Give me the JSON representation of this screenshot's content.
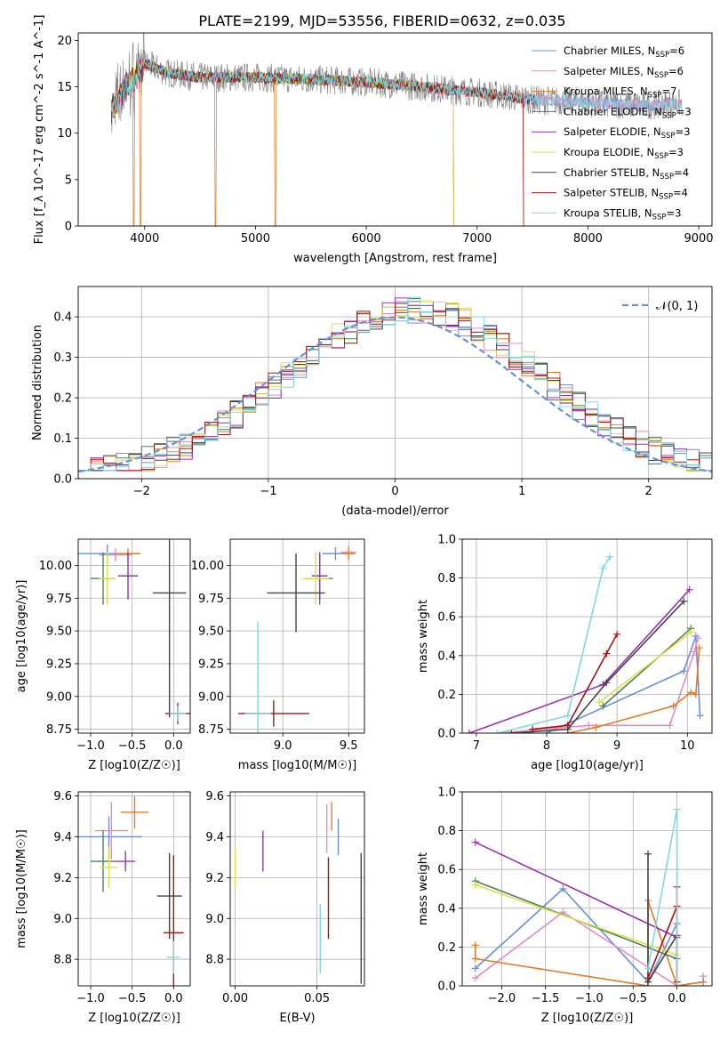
{
  "figure_title": "PLATE=2199, MJD=53556, FIBERID=0632, z=0.035",
  "chart_data": [
    {
      "type": "line",
      "title": "PLATE=2199, MJD=53556, FIBERID=0632, z=0.035",
      "xlabel": "wavelength [Angstrom, rest frame]",
      "ylabel": "Flux [f_λ 10^-17 erg cm^-2 s^-1 A^-1]",
      "xlim": [
        3400,
        9120
      ],
      "ylim": [
        0,
        20.8
      ],
      "xticks": [
        4000,
        5000,
        6000,
        7000,
        8000,
        9000
      ],
      "yticks": [
        0,
        5,
        10,
        15,
        20
      ],
      "grid": false,
      "legend_position": "upper right",
      "legend": [
        {
          "text": "Chabrier MILES, N",
          "sub": "SSP",
          "tail": "=6",
          "color": "#6A8FD8"
        },
        {
          "text": "Salpeter MILES, N",
          "sub": "SSP",
          "tail": "=6",
          "color": "#E68BC0"
        },
        {
          "text": "Kroupa MILES, N",
          "sub": "SSP",
          "tail": "=7",
          "color": "#E07B27"
        },
        {
          "text": "Chabrier ELODIE, N",
          "sub": "SSP",
          "tail": "=3",
          "color": "#4F7F5A"
        },
        {
          "text": "Salpeter ELODIE, N",
          "sub": "SSP",
          "tail": "=3",
          "color": "#9A2FB0"
        },
        {
          "text": "Kroupa ELODIE, N",
          "sub": "SSP",
          "tail": "=3",
          "color": "#D9E14A"
        },
        {
          "text": "Chabrier STELIB, N",
          "sub": "SSP",
          "tail": "=4",
          "color": "#444444"
        },
        {
          "text": "Salpeter STELIB, N",
          "sub": "SSP",
          "tail": "=4",
          "color": "#A31515"
        },
        {
          "text": "Kroupa STELIB, N",
          "sub": "SSP",
          "tail": "=3",
          "color": "#7FD9DD"
        }
      ],
      "spectrum": {
        "data_color": "#808080",
        "wave_range": [
          3700,
          8850
        ],
        "continuum": [
          [
            3700,
            12.5
          ],
          [
            3800,
            14.5
          ],
          [
            3900,
            16.0
          ],
          [
            4000,
            17.5
          ],
          [
            4200,
            16.5
          ],
          [
            4500,
            16.0
          ],
          [
            5000,
            16.0
          ],
          [
            5500,
            15.8
          ],
          [
            6000,
            15.5
          ],
          [
            6500,
            15.0
          ],
          [
            7000,
            14.4
          ],
          [
            7500,
            13.6
          ],
          [
            8000,
            13.3
          ],
          [
            8500,
            13.0
          ],
          [
            8850,
            13.2
          ]
        ],
        "model_ranges": [
          [
            3700,
            8850
          ],
          [
            3700,
            8850
          ],
          [
            3700,
            7420
          ],
          [
            3700,
            6790
          ],
          [
            3700,
            6790
          ],
          [
            3700,
            6790
          ],
          [
            3700,
            7520
          ],
          [
            3700,
            7420
          ],
          [
            3700,
            8850
          ]
        ],
        "dropouts": [
          [
            3900,
            2
          ],
          [
            3960,
            2
          ],
          [
            4640,
            2
          ],
          [
            5180,
            2
          ],
          [
            6790,
            3
          ],
          [
            6790,
            4
          ],
          [
            6790,
            5
          ],
          [
            7420,
            2
          ],
          [
            7420,
            7
          ]
        ]
      }
    },
    {
      "type": "step",
      "xlabel": "(data-model)/error",
      "ylabel": "Normed distribution",
      "xlim": [
        -2.5,
        2.5
      ],
      "ylim": [
        0,
        0.475
      ],
      "xticks": [
        -2,
        -1,
        0,
        1,
        2
      ],
      "yticks": [
        0.0,
        0.1,
        0.2,
        0.3,
        0.4
      ],
      "grid": true,
      "legend": [
        {
          "text": "𝒩(0, 1)",
          "color": "#6A8FD8",
          "style": "dashed"
        }
      ],
      "bin_edges_start": -2.5,
      "bin_width": 0.1,
      "n_bins": 50,
      "series": [
        {
          "color": "#6A8FD8",
          "seed": 11
        },
        {
          "color": "#E68BC0",
          "seed": 23
        },
        {
          "color": "#E07B27",
          "seed": 37
        },
        {
          "color": "#4F7F5A",
          "seed": 41
        },
        {
          "color": "#9A2FB0",
          "seed": 53
        },
        {
          "color": "#D9E14A",
          "seed": 67
        },
        {
          "color": "#444444",
          "seed": 71
        },
        {
          "color": "#A31515",
          "seed": 83
        },
        {
          "color": "#7FD9DD",
          "seed": 97
        }
      ],
      "gaussian": {
        "mu": 0,
        "sigma": 1
      }
    },
    {
      "type": "errorbar",
      "xlabel": "Z [log10(Z/Z☉)]",
      "ylabel": "age [log10(age/yr)]",
      "xlim": [
        -1.15,
        0.2
      ],
      "ylim": [
        8.72,
        10.2
      ],
      "xticks": [
        -1.0,
        -0.5,
        0.0
      ],
      "yticks": [
        8.75,
        9.0,
        9.25,
        9.5,
        9.75,
        10.0
      ],
      "points": [
        {
          "x": -0.8,
          "y": 10.09,
          "xerr": 0.4,
          "yerr": 0.07,
          "color": "#6A8FD8"
        },
        {
          "x": -0.7,
          "y": 10.08,
          "xerr": 0.2,
          "yerr": 0.05,
          "color": "#E68BC0"
        },
        {
          "x": -0.55,
          "y": 10.09,
          "xerr": 0.15,
          "yerr": 0.04,
          "color": "#E07B27"
        },
        {
          "x": -0.85,
          "y": 9.9,
          "xerr": 0.15,
          "yerr": 0.2,
          "color": "#4F7F5A"
        },
        {
          "x": -0.55,
          "y": 9.92,
          "xerr": 0.12,
          "yerr": 0.18,
          "color": "#9A2FB0"
        },
        {
          "x": -0.8,
          "y": 9.9,
          "xerr": 0.1,
          "yerr": 0.2,
          "color": "#D9E14A"
        },
        {
          "x": -0.05,
          "y": 9.79,
          "xerr": 0.2,
          "yerr": 0.95,
          "color": "#444444"
        },
        {
          "x": 0.05,
          "y": 8.87,
          "xerr": 0.15,
          "yerr": 0.08,
          "color": "#A31515"
        },
        {
          "x": 0.05,
          "y": 8.87,
          "xerr": 0.1,
          "yerr": 0.06,
          "color": "#7FD9DD"
        }
      ]
    },
    {
      "type": "errorbar",
      "xlabel": "mass [log10(M/M☉)]",
      "ylabel": "",
      "xlim": [
        8.6,
        9.62
      ],
      "ylim": [
        8.72,
        10.2
      ],
      "xticks": [
        9.0,
        9.5
      ],
      "yticks": [
        8.75,
        9.0,
        9.25,
        9.5,
        9.75,
        10.0
      ],
      "points": [
        {
          "x": 9.4,
          "y": 10.09,
          "xerr": 0.1,
          "yerr": 0.05,
          "color": "#6A8FD8"
        },
        {
          "x": 9.5,
          "y": 10.1,
          "xerr": 0.06,
          "yerr": 0.05,
          "color": "#E68BC0"
        },
        {
          "x": 9.5,
          "y": 10.09,
          "xerr": 0.05,
          "yerr": 0.05,
          "color": "#E07B27"
        },
        {
          "x": 9.28,
          "y": 9.9,
          "xerr": 0.1,
          "yerr": 0.2,
          "color": "#4F7F5A"
        },
        {
          "x": 9.28,
          "y": 9.92,
          "xerr": 0.06,
          "yerr": 0.18,
          "color": "#9A2FB0"
        },
        {
          "x": 9.25,
          "y": 9.9,
          "xerr": 0.1,
          "yerr": 0.2,
          "color": "#D9E14A"
        },
        {
          "x": 9.1,
          "y": 9.79,
          "xerr": 0.22,
          "yerr": 0.3,
          "color": "#444444"
        },
        {
          "x": 8.93,
          "y": 8.87,
          "xerr": 0.27,
          "yerr": 0.1,
          "color": "#A31515"
        },
        {
          "x": 8.81,
          "y": 8.87,
          "xerr": 0.1,
          "yerr": 0.7,
          "color": "#7FD9DD"
        }
      ]
    },
    {
      "type": "line",
      "xlabel": "age [log10(age/yr)]",
      "ylabel": "mass weight",
      "xlim": [
        6.8,
        10.35
      ],
      "ylim": [
        0,
        1.0
      ],
      "xticks": [
        7,
        8,
        9,
        10
      ],
      "yticks": [
        0.0,
        0.2,
        0.4,
        0.6,
        0.8,
        1.0
      ],
      "series": [
        {
          "color": "#6A8FD8",
          "x": [
            8.0,
            9.95,
            10.12,
            10.18
          ],
          "y": [
            0.0,
            0.32,
            0.5,
            0.09
          ]
        },
        {
          "color": "#E68BC0",
          "x": [
            7.3,
            8.6,
            9.75,
            10.1,
            10.15
          ],
          "y": [
            0.0,
            0.04,
            0.04,
            0.42,
            0.49
          ]
        },
        {
          "color": "#E07B27",
          "x": [
            8.3,
            8.7,
            9.8,
            10.05,
            10.12,
            10.17
          ],
          "y": [
            0.0,
            0.03,
            0.14,
            0.21,
            0.2,
            0.44
          ]
        },
        {
          "color": "#4F7F5A",
          "x": [
            8.8,
            10.05
          ],
          "y": [
            0.14,
            0.54
          ]
        },
        {
          "color": "#9A2FB0",
          "x": [
            6.9,
            8.8,
            10.03
          ],
          "y": [
            0.0,
            0.25,
            0.74
          ]
        },
        {
          "color": "#D9E14A",
          "x": [
            8.75,
            10.05
          ],
          "y": [
            0.16,
            0.52
          ]
        },
        {
          "color": "#444444",
          "x": [
            7.5,
            8.3,
            8.85,
            9.95
          ],
          "y": [
            0.0,
            0.02,
            0.26,
            0.68
          ]
        },
        {
          "color": "#A31515",
          "x": [
            7.8,
            8.3,
            8.85,
            9.0
          ],
          "y": [
            0.02,
            0.04,
            0.41,
            0.51
          ]
        },
        {
          "color": "#7FD9DD",
          "x": [
            7.3,
            8.3,
            8.8,
            8.9
          ],
          "y": [
            0.0,
            0.09,
            0.85,
            0.91
          ]
        }
      ]
    },
    {
      "type": "errorbar",
      "xlabel": "Z [log10(Z/Z☉)]",
      "ylabel": "mass [log10(M/M☉)]",
      "xlim": [
        -1.15,
        0.2
      ],
      "ylim": [
        8.67,
        9.62
      ],
      "xticks": [
        -1.0,
        -0.5,
        0.0
      ],
      "yticks": [
        8.8,
        9.0,
        9.2,
        9.4,
        9.6
      ],
      "points": [
        {
          "x": -0.78,
          "y": 9.4,
          "xerr": 0.4,
          "yerr": 0.1,
          "color": "#6A8FD8"
        },
        {
          "x": -0.75,
          "y": 9.43,
          "xerr": 0.2,
          "yerr": 0.14,
          "color": "#E68BC0"
        },
        {
          "x": -0.47,
          "y": 9.52,
          "xerr": 0.17,
          "yerr": 0.08,
          "color": "#E07B27"
        },
        {
          "x": -0.85,
          "y": 9.28,
          "xerr": 0.15,
          "yerr": 0.15,
          "color": "#4F7F5A"
        },
        {
          "x": -0.58,
          "y": 9.28,
          "xerr": 0.12,
          "yerr": 0.05,
          "color": "#9A2FB0"
        },
        {
          "x": -0.78,
          "y": 9.25,
          "xerr": 0.1,
          "yerr": 0.1,
          "color": "#D9E14A"
        },
        {
          "x": -0.05,
          "y": 9.11,
          "xerr": 0.15,
          "yerr": 0.21,
          "color": "#444444"
        },
        {
          "x": 0.0,
          "y": 8.93,
          "xerr": 0.12,
          "yerr": 0.38,
          "color": "#A31515"
        },
        {
          "x": 0.0,
          "y": 8.81,
          "xerr": 0.08,
          "yerr": 0.08,
          "color": "#7FD9DD"
        }
      ]
    },
    {
      "type": "errorbar",
      "xlabel": "E(B-V)",
      "ylabel": "",
      "xlim": [
        -0.003,
        0.079
      ],
      "ylim": [
        8.67,
        9.62
      ],
      "xticks": [
        0.0,
        0.05
      ],
      "yticks": [
        8.8,
        9.0,
        9.2,
        9.4,
        9.6
      ],
      "points": [
        {
          "x": 0.063,
          "y": 9.4,
          "xerr": 0,
          "yerr": 0.09,
          "color": "#6A8FD8"
        },
        {
          "x": 0.056,
          "y": 9.44,
          "xerr": 0,
          "yerr": 0.12,
          "color": "#E68BC0"
        },
        {
          "x": 0.059,
          "y": 9.5,
          "xerr": 0,
          "yerr": 0.07,
          "color": "#E07B27"
        },
        {
          "x": 0.0,
          "y": 9.25,
          "xerr": 0,
          "yerr": 0.1,
          "color": "#D9E14A"
        },
        {
          "x": 0.017,
          "y": 9.33,
          "xerr": 0,
          "yerr": 0.1,
          "color": "#9A2FB0"
        },
        {
          "x": 0.077,
          "y": 9.0,
          "xerr": 0,
          "yerr": 0.32,
          "color": "#444444"
        },
        {
          "x": 0.057,
          "y": 9.1,
          "xerr": 0,
          "yerr": 0.2,
          "color": "#A31515"
        },
        {
          "x": 0.052,
          "y": 8.9,
          "xerr": 0,
          "yerr": 0.17,
          "color": "#7FD9DD"
        }
      ]
    },
    {
      "type": "line",
      "xlabel": "Z [log10(Z/Z☉)]",
      "ylabel": "mass weight",
      "xlim": [
        -2.45,
        0.4
      ],
      "ylim": [
        0,
        1.0
      ],
      "xticks": [
        -2.0,
        -1.5,
        -1.0,
        -0.5,
        0.0
      ],
      "yticks": [
        0.0,
        0.2,
        0.4,
        0.6,
        0.8,
        1.0
      ],
      "series": [
        {
          "color": "#6A8FD8",
          "x": [
            -2.3,
            -1.3,
            -0.33,
            0.0
          ],
          "y": [
            0.09,
            0.5,
            0.02,
            0.32
          ]
        },
        {
          "color": "#E68BC0",
          "x": [
            -2.3,
            -1.3,
            0.0,
            0.3,
            0.3
          ],
          "y": [
            0.04,
            0.38,
            0.0,
            0.02,
            0.05
          ]
        },
        {
          "color": "#E07B27",
          "x": [
            -2.3,
            -2.3,
            -0.33,
            -0.33,
            0.0,
            0.3
          ],
          "y": [
            0.21,
            0.14,
            0.0,
            0.44,
            0.0,
            0.02
          ]
        },
        {
          "color": "#4F7F5A",
          "x": [
            -2.3,
            0.0
          ],
          "y": [
            0.54,
            0.14
          ]
        },
        {
          "color": "#9A2FB0",
          "x": [
            -2.3,
            0.0
          ],
          "y": [
            0.74,
            0.25
          ]
        },
        {
          "color": "#D9E14A",
          "x": [
            -2.3,
            0.0
          ],
          "y": [
            0.52,
            0.16
          ]
        },
        {
          "color": "#444444",
          "x": [
            -0.33,
            -0.33,
            0.0,
            0.0
          ],
          "y": [
            0.68,
            0.02,
            0.26,
            0.0
          ]
        },
        {
          "color": "#A31515",
          "x": [
            -0.33,
            0.0,
            0.0,
            0.0
          ],
          "y": [
            0.04,
            0.41,
            0.51,
            0.02
          ]
        },
        {
          "color": "#7FD9DD",
          "x": [
            -0.33,
            0.0,
            0.0
          ],
          "y": [
            0.09,
            0.91,
            0.0
          ]
        }
      ]
    }
  ]
}
